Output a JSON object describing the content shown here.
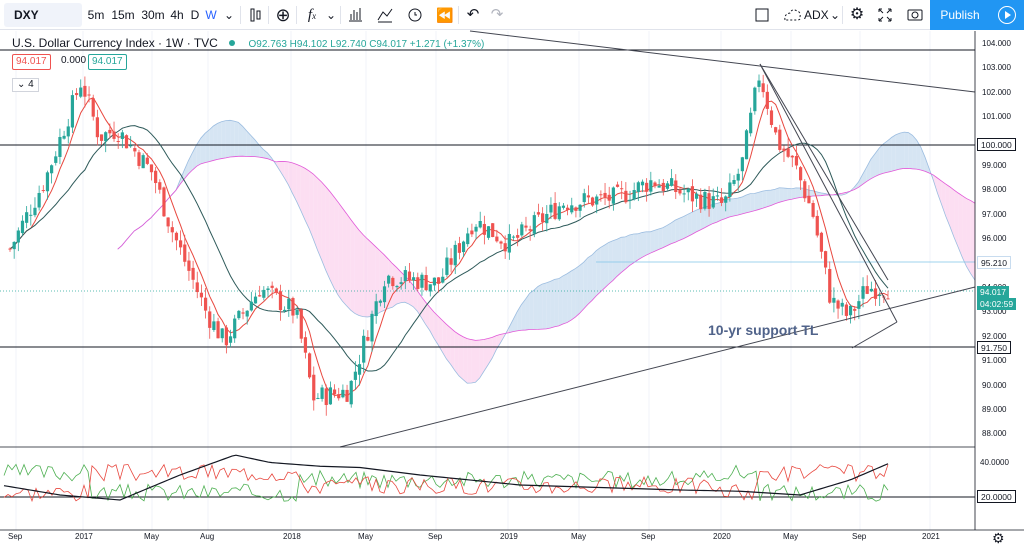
{
  "toolbar": {
    "symbol": "DXY",
    "intervals": [
      "5m",
      "15m",
      "30m",
      "4h",
      "D",
      "W"
    ],
    "active_interval": "W",
    "compare_label": "ADX",
    "publish_label": "Publish"
  },
  "legend": {
    "title": "U.S. Dollar Currency Index · 1W · TVC",
    "open": "O92.763",
    "high": "H94.102",
    "low": "L92.740",
    "close": "C94.017",
    "change": "+1.271 (+1.37%)",
    "badge1": "94.017",
    "badge_mid": "0.000",
    "badge2": "94.017",
    "indicators_count": "4"
  },
  "price_axis": {
    "ticks": [
      "104.000",
      "103.000",
      "102.000",
      "101.000",
      "100.000",
      "99.000",
      "98.000",
      "97.000",
      "96.000",
      "95.000",
      "94.000",
      "93.000",
      "92.000",
      "91.000",
      "90.000",
      "89.000",
      "88.000"
    ],
    "tags": {
      "level_100": "100.000",
      "level_95": "95.210",
      "last_price": "94.017",
      "countdown": "04:02:59",
      "level_91": "91.750"
    },
    "adx_ticks": [
      "40.0000",
      "20.0000"
    ]
  },
  "time_axis": {
    "labels": [
      "Sep",
      "2017",
      "May",
      "Aug",
      "2018",
      "May",
      "Sep",
      "2019",
      "May",
      "Sep",
      "2020",
      "May",
      "Sep",
      "2021"
    ]
  },
  "annotation": {
    "text": "10-yr support TL"
  },
  "colors": {
    "up": "#26a69a",
    "down": "#ef5350",
    "accent": "#2196f3",
    "cloud_bull": "#c8dcef",
    "cloud_bear": "#fbd3ee",
    "trendline": "#434651"
  },
  "chart_data": {
    "type": "candlestick",
    "ylim": [
      88,
      104.5
    ],
    "close_path": [
      {
        "t": "2016-09",
        "v": 95.6
      },
      {
        "t": "2016-11",
        "v": 98.5
      },
      {
        "t": "2017-01",
        "v": 102.5
      },
      {
        "t": "2017-02",
        "v": 100.2
      },
      {
        "t": "2017-03",
        "v": 100.5
      },
      {
        "t": "2017-05",
        "v": 98.7
      },
      {
        "t": "2017-06",
        "v": 96.5
      },
      {
        "t": "2017-08",
        "v": 93.0
      },
      {
        "t": "2017-09",
        "v": 91.8
      },
      {
        "t": "2017-11",
        "v": 94.0
      },
      {
        "t": "2018-01",
        "v": 93.0
      },
      {
        "t": "2018-02",
        "v": 89.5
      },
      {
        "t": "2018-04",
        "v": 89.8
      },
      {
        "t": "2018-06",
        "v": 94.5
      },
      {
        "t": "2018-09",
        "v": 94.2
      },
      {
        "t": "2018-11",
        "v": 96.8
      },
      {
        "t": "2019-01",
        "v": 95.8
      },
      {
        "t": "2019-04",
        "v": 97.5
      },
      {
        "t": "2019-07",
        "v": 97.7
      },
      {
        "t": "2019-09",
        "v": 98.4
      },
      {
        "t": "2019-11",
        "v": 97.8
      },
      {
        "t": "2020-01",
        "v": 97.4
      },
      {
        "t": "2020-02",
        "v": 99.0
      },
      {
        "t": "2020-03",
        "v": 102.8
      },
      {
        "t": "2020-04",
        "v": 100.0
      },
      {
        "t": "2020-05",
        "v": 99.0
      },
      {
        "t": "2020-06",
        "v": 97.0
      },
      {
        "t": "2020-07",
        "v": 93.5
      },
      {
        "t": "2020-08",
        "v": 92.8
      },
      {
        "t": "2020-09",
        "v": 94.0
      }
    ]
  }
}
